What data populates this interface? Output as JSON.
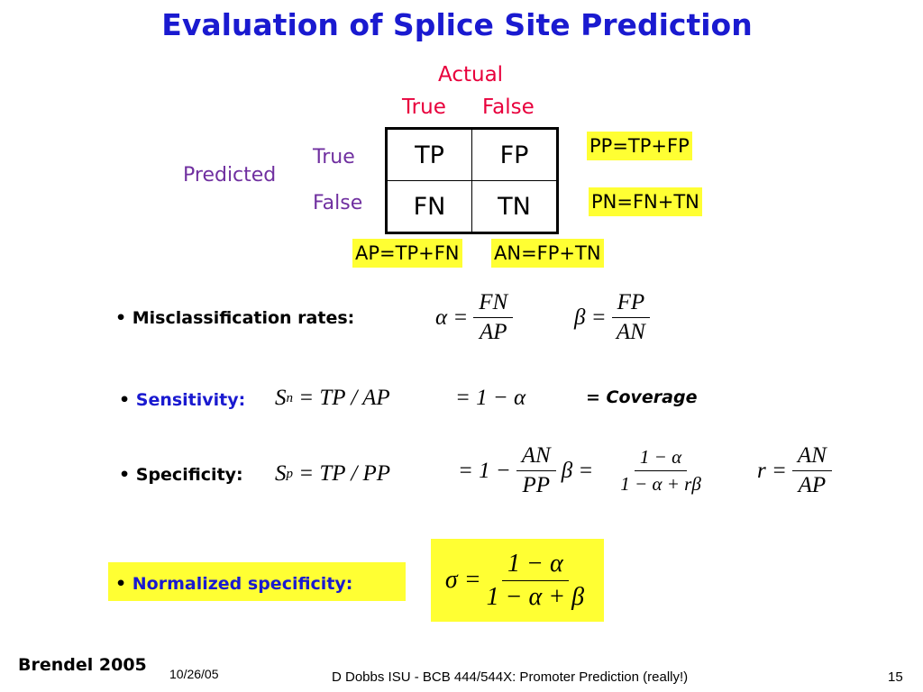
{
  "title": "Evaluation of Splice Site Prediction",
  "matrix": {
    "actual": "Actual",
    "actual_true": "True",
    "actual_false": "False",
    "predicted": "Predicted",
    "predicted_true": "True",
    "predicted_false": "False",
    "cells": [
      [
        "TP",
        "FP"
      ],
      [
        "FN",
        "TN"
      ]
    ]
  },
  "sums": {
    "pp": "PP=TP+FP",
    "pn": "PN=FN+TN",
    "ap": "AP=TP+FN",
    "an": "AN=FP+TN"
  },
  "misclassification": {
    "label": "Misclassification rates:",
    "alpha": {
      "lhs": "α =",
      "num": "FN",
      "den": "AP"
    },
    "beta": {
      "lhs": "β =",
      "num": "FP",
      "den": "AN"
    }
  },
  "sensitivity": {
    "label": "Sensitivity:",
    "symbol": "S",
    "sub": "n",
    "rhs": "= TP / AP",
    "second": "= 1 − α",
    "note": "= Coverage"
  },
  "specificity": {
    "label": "Specificity:",
    "symbol": "S",
    "sub": "p",
    "rhs": "= TP / PP",
    "second_lhs": "= 1 −",
    "second_num": "AN",
    "second_den": "PP",
    "third_lhs": "β =",
    "third_num": "1 − α",
    "third_den": "1 − α + rβ",
    "r_lhs": "r =",
    "r_num": "AN",
    "r_den": "AP"
  },
  "normalized": {
    "label": "Normalized specificity:",
    "lhs": "σ =",
    "num": "1 − α",
    "den": "1 − α + β"
  },
  "footer": {
    "author": "Brendel 2005",
    "date": "10/26/05",
    "source": "D Dobbs ISU - BCB 444/544X: Promoter Prediction (really!)",
    "page": "15"
  }
}
